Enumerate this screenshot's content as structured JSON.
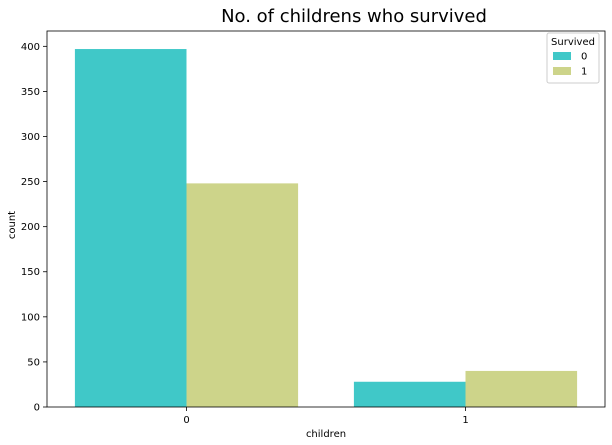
{
  "chart_data": {
    "type": "bar",
    "title": "No. of childrens who survived",
    "xlabel": "children",
    "ylabel": "count",
    "categories": [
      "0",
      "1"
    ],
    "series": [
      {
        "name": "0",
        "values": [
          397,
          28
        ],
        "color": "#40c8c8"
      },
      {
        "name": "1",
        "values": [
          248,
          40
        ],
        "color": "#cdd48a"
      }
    ],
    "ylim": [
      0,
      417
    ],
    "yticks": [
      0,
      50,
      100,
      150,
      200,
      250,
      300,
      350,
      400
    ],
    "legend": {
      "title": "Survived",
      "position": "top-right"
    },
    "grid": false
  }
}
